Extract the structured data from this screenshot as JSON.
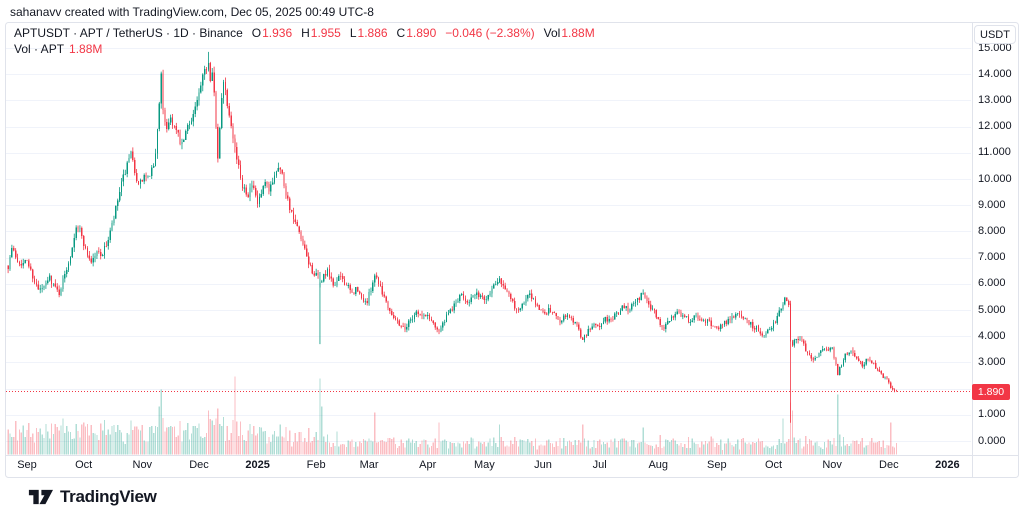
{
  "attribution": "sahanavv created with TradingView.com, Dec 05, 2025 00:49 UTC-8",
  "header": {
    "symbol_text": "APTUSDT · APT / TetherUS · 1D · Binance",
    "ohlc": {
      "o_label": "O",
      "o": "1.936",
      "h_label": "H",
      "h": "1.955",
      "l_label": "L",
      "l": "1.886",
      "c_label": "C",
      "c": "1.890",
      "change": "−0.046 (−2.38%)",
      "vol_label": "Vol",
      "vol": "1.88M"
    }
  },
  "volume_legend": {
    "label": "Vol · APT",
    "value": "1.88M"
  },
  "price_axis": {
    "currency": "USDT",
    "last_price": "1.890",
    "labels": [
      {
        "text": "15.000",
        "value": 15
      },
      {
        "text": "14.000",
        "value": 14
      },
      {
        "text": "13.000",
        "value": 13
      },
      {
        "text": "12.000",
        "value": 12
      },
      {
        "text": "11.000",
        "value": 11
      },
      {
        "text": "10.000",
        "value": 10
      },
      {
        "text": "9.000",
        "value": 9
      },
      {
        "text": "8.000",
        "value": 8
      },
      {
        "text": "7.000",
        "value": 7
      },
      {
        "text": "6.000",
        "value": 6
      },
      {
        "text": "5.000",
        "value": 5
      },
      {
        "text": "4.000",
        "value": 4
      },
      {
        "text": "3.000",
        "value": 3
      },
      {
        "text": "1.000",
        "value": 1
      },
      {
        "text": "0.000",
        "value": 0
      }
    ],
    "grid_values": [
      0,
      1,
      2,
      3,
      4,
      5,
      6,
      7,
      8,
      9,
      10,
      11,
      12,
      13,
      14,
      15
    ]
  },
  "time_axis": {
    "labels": [
      {
        "text": "Sep",
        "day": 0,
        "bold": false
      },
      {
        "text": "Oct",
        "day": 30,
        "bold": false
      },
      {
        "text": "Nov",
        "day": 61,
        "bold": false
      },
      {
        "text": "Dec",
        "day": 91,
        "bold": false
      },
      {
        "text": "2025",
        "day": 122,
        "bold": true
      },
      {
        "text": "Feb",
        "day": 153,
        "bold": false
      },
      {
        "text": "Mar",
        "day": 181,
        "bold": false
      },
      {
        "text": "Apr",
        "day": 212,
        "bold": false
      },
      {
        "text": "May",
        "day": 242,
        "bold": false
      },
      {
        "text": "Jun",
        "day": 273,
        "bold": false
      },
      {
        "text": "Jul",
        "day": 303,
        "bold": false
      },
      {
        "text": "Aug",
        "day": 334,
        "bold": false
      },
      {
        "text": "Sep",
        "day": 365,
        "bold": false
      },
      {
        "text": "Oct",
        "day": 395,
        "bold": false
      },
      {
        "text": "Nov",
        "day": 426,
        "bold": false
      },
      {
        "text": "Dec",
        "day": 456,
        "bold": false
      },
      {
        "text": "2026",
        "day": 487,
        "bold": true
      }
    ]
  },
  "logo": {
    "text": "TradingView"
  },
  "colors": {
    "up": "#089981",
    "down": "#f23645",
    "vol_up": "rgba(8,153,129,0.32)",
    "vol_down": "rgba(242,54,69,0.32)",
    "grid": "#f0f3fa",
    "border": "#e0e3eb",
    "text": "#131722",
    "accent_red": "#f23645",
    "background": "#ffffff"
  },
  "chart_data": {
    "type": "candlestick",
    "title": "APTUSDT · APT / TetherUS · 1D · Binance",
    "ylabel": "USDT",
    "ylim": [
      0,
      15.5
    ],
    "legend_position": "top-left",
    "grid": "horizontal-only",
    "day_start": -10,
    "day_end": 460,
    "last": {
      "open": 1.936,
      "high": 1.955,
      "low": 1.886,
      "close": 1.89,
      "change": -0.046,
      "change_pct": -2.38,
      "volume": "1.88M"
    },
    "price_path": [
      [
        -10,
        6.7
      ],
      [
        -8,
        7.35
      ],
      [
        -5,
        6.9
      ],
      [
        -2,
        6.75
      ],
      [
        0,
        6.9
      ],
      [
        3,
        6.3
      ],
      [
        6,
        5.75
      ],
      [
        9,
        5.85
      ],
      [
        12,
        6.25
      ],
      [
        15,
        5.85
      ],
      [
        17,
        5.65
      ],
      [
        20,
        6.35
      ],
      [
        23,
        7.1
      ],
      [
        26,
        8.25
      ],
      [
        28,
        8.05
      ],
      [
        31,
        7.3
      ],
      [
        34,
        6.85
      ],
      [
        37,
        7.2
      ],
      [
        40,
        7.15
      ],
      [
        43,
        7.7
      ],
      [
        46,
        8.5
      ],
      [
        49,
        9.5
      ],
      [
        52,
        10.3
      ],
      [
        55,
        10.9
      ],
      [
        57,
        10.35
      ],
      [
        59,
        9.7
      ],
      [
        62,
        10.1
      ],
      [
        65,
        10.0
      ],
      [
        68,
        10.9
      ],
      [
        70,
        13.0
      ],
      [
        71,
        13.9
      ],
      [
        72,
        12.5
      ],
      [
        74,
        12.0
      ],
      [
        76,
        12.35
      ],
      [
        79,
        11.8
      ],
      [
        82,
        11.25
      ],
      [
        85,
        12.0
      ],
      [
        88,
        12.5
      ],
      [
        91,
        13.2
      ],
      [
        94,
        14.1
      ],
      [
        96,
        14.5
      ],
      [
        97,
        13.9
      ],
      [
        98,
        14.25
      ],
      [
        99,
        13.3
      ],
      [
        100,
        11.9
      ],
      [
        101,
        10.7
      ],
      [
        102,
        11.9
      ],
      [
        103,
        13.2
      ],
      [
        104,
        13.85
      ],
      [
        106,
        12.9
      ],
      [
        108,
        12.2
      ],
      [
        110,
        11.2
      ],
      [
        112,
        10.4
      ],
      [
        114,
        9.8
      ],
      [
        117,
        9.45
      ],
      [
        119,
        9.75
      ],
      [
        122,
        9.05
      ],
      [
        124,
        9.4
      ],
      [
        126,
        9.8
      ],
      [
        128,
        9.5
      ],
      [
        131,
        10.2
      ],
      [
        133,
        10.55
      ],
      [
        135,
        10.15
      ],
      [
        137,
        9.5
      ],
      [
        140,
        8.65
      ],
      [
        143,
        8.1
      ],
      [
        146,
        7.45
      ],
      [
        149,
        6.8
      ],
      [
        152,
        6.35
      ],
      [
        154,
        6.25
      ],
      [
        155,
        6.05
      ],
      [
        157,
        6.3
      ],
      [
        159,
        6.45
      ],
      [
        162,
        5.95
      ],
      [
        164,
        6.1
      ],
      [
        166,
        6.3
      ],
      [
        169,
        5.95
      ],
      [
        172,
        5.6
      ],
      [
        174,
        5.8
      ],
      [
        177,
        5.45
      ],
      [
        180,
        5.3
      ],
      [
        182,
        5.85
      ],
      [
        184,
        6.35
      ],
      [
        186,
        6.1
      ],
      [
        189,
        5.5
      ],
      [
        192,
        5.0
      ],
      [
        195,
        4.65
      ],
      [
        198,
        4.4
      ],
      [
        200,
        4.3
      ],
      [
        203,
        4.65
      ],
      [
        206,
        4.95
      ],
      [
        209,
        4.75
      ],
      [
        212,
        4.8
      ],
      [
        215,
        4.5
      ],
      [
        218,
        4.2
      ],
      [
        221,
        4.6
      ],
      [
        224,
        4.95
      ],
      [
        227,
        5.3
      ],
      [
        230,
        5.55
      ],
      [
        233,
        5.35
      ],
      [
        236,
        5.5
      ],
      [
        239,
        5.6
      ],
      [
        242,
        5.4
      ],
      [
        245,
        5.7
      ],
      [
        248,
        6.1
      ],
      [
        250,
        6.25
      ],
      [
        253,
        5.85
      ],
      [
        256,
        5.4
      ],
      [
        259,
        5.0
      ],
      [
        262,
        5.15
      ],
      [
        265,
        5.55
      ],
      [
        267,
        5.5
      ],
      [
        270,
        5.15
      ],
      [
        273,
        4.9
      ],
      [
        276,
        5.0
      ],
      [
        279,
        4.85
      ],
      [
        282,
        4.6
      ],
      [
        285,
        4.8
      ],
      [
        288,
        4.7
      ],
      [
        291,
        4.4
      ],
      [
        294,
        3.85
      ],
      [
        297,
        4.2
      ],
      [
        300,
        4.45
      ],
      [
        303,
        4.4
      ],
      [
        306,
        4.65
      ],
      [
        309,
        4.6
      ],
      [
        312,
        4.85
      ],
      [
        315,
        5.1
      ],
      [
        318,
        5.05
      ],
      [
        321,
        5.3
      ],
      [
        324,
        5.5
      ],
      [
        326,
        5.6
      ],
      [
        329,
        5.2
      ],
      [
        332,
        4.95
      ],
      [
        335,
        4.45
      ],
      [
        337,
        4.35
      ],
      [
        340,
        4.65
      ],
      [
        343,
        4.9
      ],
      [
        345,
        4.95
      ],
      [
        348,
        4.7
      ],
      [
        351,
        4.6
      ],
      [
        354,
        4.75
      ],
      [
        357,
        4.55
      ],
      [
        360,
        4.6
      ],
      [
        363,
        4.4
      ],
      [
        366,
        4.35
      ],
      [
        369,
        4.5
      ],
      [
        372,
        4.65
      ],
      [
        375,
        4.8
      ],
      [
        378,
        4.8
      ],
      [
        381,
        4.6
      ],
      [
        384,
        4.4
      ],
      [
        387,
        4.25
      ],
      [
        390,
        4.05
      ],
      [
        393,
        4.3
      ],
      [
        396,
        4.6
      ],
      [
        398,
        4.9
      ],
      [
        400,
        5.3
      ],
      [
        401,
        5.5
      ],
      [
        403,
        5.25
      ],
      [
        404,
        3.8
      ],
      [
        405,
        3.65
      ],
      [
        407,
        3.95
      ],
      [
        409,
        3.9
      ],
      [
        412,
        3.5
      ],
      [
        414,
        3.2
      ],
      [
        416,
        3.1
      ],
      [
        418,
        3.3
      ],
      [
        421,
        3.5
      ],
      [
        424,
        3.4
      ],
      [
        426,
        3.55
      ],
      [
        428,
        2.95
      ],
      [
        429,
        2.6
      ],
      [
        431,
        2.9
      ],
      [
        433,
        3.25
      ],
      [
        435,
        3.45
      ],
      [
        437,
        3.4
      ],
      [
        439,
        3.15
      ],
      [
        442,
        2.9
      ],
      [
        444,
        3.05
      ],
      [
        446,
        3.15
      ],
      [
        449,
        2.85
      ],
      [
        452,
        2.55
      ],
      [
        454,
        2.4
      ],
      [
        456,
        2.2
      ],
      [
        458,
        1.98
      ],
      [
        460,
        1.89
      ]
    ],
    "special_candles": [
      {
        "day": 71,
        "h": 14.1
      },
      {
        "day": 96,
        "h": 14.85
      },
      {
        "day": 155,
        "o": 5.85,
        "h": 6.45,
        "l": 3.7,
        "c": 6.05
      },
      {
        "day": 404,
        "o": 5.25,
        "h": 5.35,
        "l": 0.7,
        "c": 3.8
      },
      {
        "day": 460,
        "o": 1.936,
        "h": 1.955,
        "l": 1.886,
        "c": 1.89
      }
    ],
    "volume_spikes": [
      {
        "day": 55,
        "h": 34,
        "dir": "up"
      },
      {
        "day": 70,
        "h": 48,
        "dir": "up"
      },
      {
        "day": 71,
        "h": 65,
        "dir": "up"
      },
      {
        "day": 96,
        "h": 44,
        "dir": "down"
      },
      {
        "day": 101,
        "h": 46,
        "dir": "down"
      },
      {
        "day": 110,
        "h": 78,
        "dir": "down"
      },
      {
        "day": 134,
        "h": 30,
        "dir": "up"
      },
      {
        "day": 155,
        "h": 76,
        "dir": "up"
      },
      {
        "day": 156,
        "h": 48,
        "dir": "up"
      },
      {
        "day": 184,
        "h": 42,
        "dir": "down"
      },
      {
        "day": 218,
        "h": 32,
        "dir": "down"
      },
      {
        "day": 250,
        "h": 30,
        "dir": "up"
      },
      {
        "day": 294,
        "h": 30,
        "dir": "down"
      },
      {
        "day": 326,
        "h": 27,
        "dir": "up"
      },
      {
        "day": 400,
        "h": 36,
        "dir": "up"
      },
      {
        "day": 404,
        "h": 52,
        "dir": "down"
      },
      {
        "day": 405,
        "h": 44,
        "dir": "down"
      },
      {
        "day": 429,
        "h": 60,
        "dir": "up"
      },
      {
        "day": 457,
        "h": 32,
        "dir": "down"
      }
    ]
  }
}
